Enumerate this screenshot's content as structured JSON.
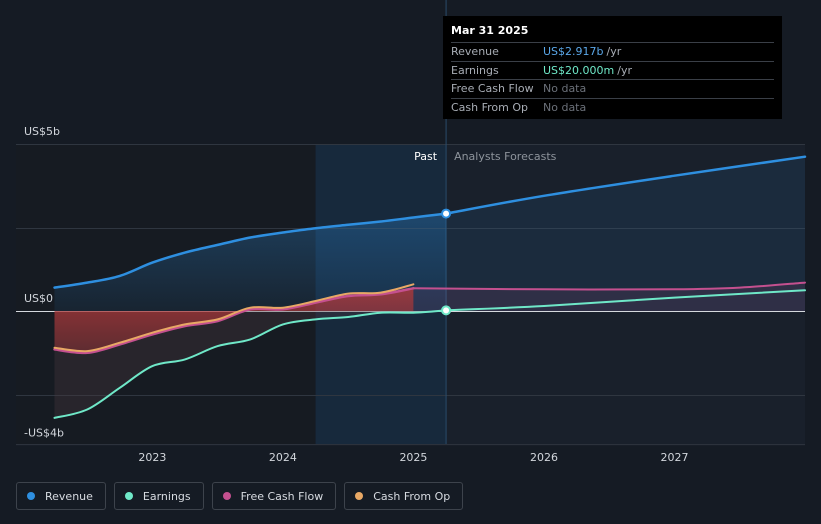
{
  "chart_data": {
    "type": "area",
    "x_range": [
      2022.2,
      2028.0
    ],
    "ylim": [
      -4.0,
      5.0
    ],
    "y_unit": "US$ billions",
    "y_ticks": [
      {
        "value": 5.0,
        "label": "US$5b"
      },
      {
        "value": 0.0,
        "label": "US$0"
      },
      {
        "value": -4.0,
        "label": "-US$4b"
      }
    ],
    "x_ticks": [
      {
        "value": 2023.0,
        "label": "2023"
      },
      {
        "value": 2024.0,
        "label": "2024"
      },
      {
        "value": 2025.0,
        "label": "2025"
      },
      {
        "value": 2026.0,
        "label": "2026"
      },
      {
        "value": 2027.0,
        "label": "2027"
      }
    ],
    "past_label": "Past",
    "forecast_label": "Analysts Forecasts",
    "past_band_start": 2024.25,
    "divider_x": 2025.25,
    "grid": true,
    "legend_position": "bottom-left",
    "series": [
      {
        "name": "Revenue",
        "color": "#2e8fe0",
        "x": [
          2022.25,
          2022.5,
          2022.75,
          2023.0,
          2023.25,
          2023.5,
          2023.75,
          2024.0,
          2024.25,
          2024.5,
          2024.75,
          2025.0,
          2025.25
        ],
        "values": [
          0.7,
          0.85,
          1.05,
          1.45,
          1.75,
          1.98,
          2.2,
          2.35,
          2.48,
          2.58,
          2.68,
          2.8,
          2.917
        ]
      },
      {
        "name": "Revenue Forecast",
        "color": "#2e8fe0",
        "x": [
          2025.25,
          2026.0,
          2027.0,
          2028.0
        ],
        "values": [
          2.917,
          3.45,
          4.05,
          4.62
        ]
      },
      {
        "name": "Earnings",
        "color": "#6fe8c8",
        "x": [
          2022.25,
          2022.5,
          2022.75,
          2023.0,
          2023.25,
          2023.5,
          2023.75,
          2024.0,
          2024.25,
          2024.5,
          2024.75,
          2025.0,
          2025.25
        ],
        "values": [
          -3.2,
          -2.95,
          -2.3,
          -1.65,
          -1.45,
          -1.05,
          -0.85,
          -0.4,
          -0.25,
          -0.18,
          -0.05,
          -0.05,
          0.02
        ]
      },
      {
        "name": "Earnings Forecast",
        "color": "#6fe8c8",
        "x": [
          2025.25,
          2026.0,
          2027.0,
          2028.0
        ],
        "values": [
          0.02,
          0.15,
          0.4,
          0.62
        ]
      },
      {
        "name": "Free Cash Flow",
        "color": "#c4508f",
        "x": [
          2022.25,
          2022.5,
          2022.75,
          2023.0,
          2023.25,
          2023.5,
          2023.75,
          2024.0,
          2024.25,
          2024.5,
          2024.75,
          2025.0
        ],
        "values": [
          -1.15,
          -1.25,
          -1.0,
          -0.7,
          -0.45,
          -0.3,
          0.05,
          0.05,
          0.25,
          0.45,
          0.5,
          0.68
        ]
      },
      {
        "name": "Free Cash Flow Forecast",
        "color": "#c4508f",
        "x": [
          2025.0,
          2026.0,
          2027.0,
          2027.5,
          2028.0
        ],
        "values": [
          0.68,
          0.65,
          0.65,
          0.7,
          0.85
        ]
      },
      {
        "name": "Cash From Op",
        "color": "#e8a865",
        "x": [
          2022.25,
          2022.5,
          2022.75,
          2023.0,
          2023.25,
          2023.5,
          2023.75,
          2024.0,
          2024.25,
          2024.5,
          2024.75,
          2025.0
        ],
        "values": [
          -1.1,
          -1.2,
          -0.95,
          -0.65,
          -0.4,
          -0.25,
          0.1,
          0.1,
          0.3,
          0.52,
          0.55,
          0.8
        ]
      }
    ]
  },
  "tooltip": {
    "date": "Mar 31 2025",
    "rows": [
      {
        "label": "Revenue",
        "value": "US$2.917b",
        "unit": "/yr"
      },
      {
        "label": "Earnings",
        "value": "US$20.000m",
        "unit": "/yr"
      },
      {
        "label": "Free Cash Flow",
        "value": "No data",
        "unit": ""
      },
      {
        "label": "Cash From Op",
        "value": "No data",
        "unit": ""
      }
    ]
  },
  "legend": [
    {
      "label": "Revenue",
      "color": "#2e8fe0"
    },
    {
      "label": "Earnings",
      "color": "#6fe8c8"
    },
    {
      "label": "Free Cash Flow",
      "color": "#c4508f"
    },
    {
      "label": "Cash From Op",
      "color": "#e8a865"
    }
  ]
}
